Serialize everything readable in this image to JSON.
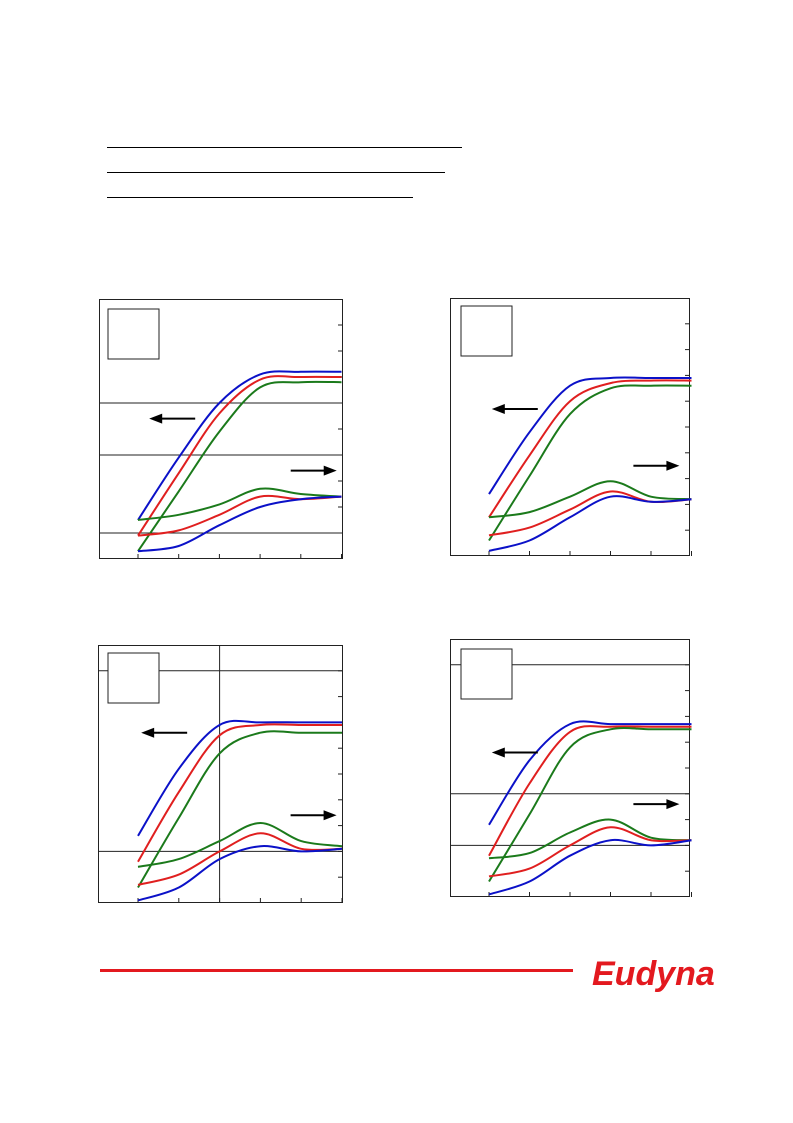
{
  "colors": {
    "blue": "#0b11c8",
    "red": "#e01f1f",
    "green": "#1b7a1b",
    "brand": "#e3191f"
  },
  "brand": {
    "logo": "Eudyna"
  },
  "charts": [
    {
      "id": "top-left",
      "y_ticks": 10,
      "x_ticks": 6,
      "h_lines": [
        1,
        4,
        6
      ],
      "v_lines": [],
      "arrows": [
        {
          "dir": "left",
          "x": 0.3,
          "y": 0.46
        },
        {
          "dir": "right",
          "x": 0.88,
          "y": 0.66
        }
      ],
      "series": [
        {
          "name": "",
          "color": "blue",
          "points": [
            [
              1,
              1.5
            ],
            [
              2,
              3.9
            ],
            [
              3,
              6.0
            ],
            [
              4,
              7.1
            ],
            [
              5,
              7.2
            ],
            [
              6,
              7.2
            ]
          ]
        },
        {
          "name": "",
          "color": "red",
          "points": [
            [
              1,
              0.9
            ],
            [
              2,
              3.3
            ],
            [
              3,
              5.6
            ],
            [
              4,
              6.9
            ],
            [
              5,
              7.0
            ],
            [
              6,
              7.0
            ]
          ]
        },
        {
          "name": "",
          "color": "green",
          "points": [
            [
              1,
              0.3
            ],
            [
              2,
              2.6
            ],
            [
              3,
              4.9
            ],
            [
              4,
              6.6
            ],
            [
              5,
              6.8
            ],
            [
              6,
              6.8
            ]
          ]
        },
        {
          "name": "",
          "color": "green",
          "points": [
            [
              1,
              1.5
            ],
            [
              2,
              1.7
            ],
            [
              3,
              2.1
            ],
            [
              4,
              2.7
            ],
            [
              5,
              2.5
            ],
            [
              6,
              2.4
            ]
          ]
        },
        {
          "name": "",
          "color": "red",
          "points": [
            [
              1,
              0.9
            ],
            [
              2,
              1.1
            ],
            [
              3,
              1.7
            ],
            [
              4,
              2.4
            ],
            [
              5,
              2.3
            ],
            [
              6,
              2.4
            ]
          ]
        },
        {
          "name": "",
          "color": "blue",
          "points": [
            [
              1,
              0.3
            ],
            [
              2,
              0.5
            ],
            [
              3,
              1.3
            ],
            [
              4,
              2.0
            ],
            [
              5,
              2.3
            ],
            [
              6,
              2.4
            ]
          ]
        }
      ]
    },
    {
      "id": "top-right",
      "y_ticks": 10,
      "x_ticks": 6,
      "h_lines": [],
      "v_lines": [],
      "arrows": [
        {
          "dir": "left",
          "x": 0.27,
          "y": 0.43
        },
        {
          "dir": "right",
          "x": 0.86,
          "y": 0.65
        }
      ],
      "series": [
        {
          "name": "",
          "color": "blue",
          "points": [
            [
              1,
              2.4
            ],
            [
              2,
              4.8
            ],
            [
              3,
              6.6
            ],
            [
              4,
              6.9
            ],
            [
              5,
              6.9
            ],
            [
              6,
              6.9
            ]
          ]
        },
        {
          "name": "",
          "color": "red",
          "points": [
            [
              1,
              1.5
            ],
            [
              2,
              3.9
            ],
            [
              3,
              6.0
            ],
            [
              4,
              6.7
            ],
            [
              5,
              6.8
            ],
            [
              6,
              6.8
            ]
          ]
        },
        {
          "name": "",
          "color": "green",
          "points": [
            [
              1,
              0.6
            ],
            [
              2,
              3.1
            ],
            [
              3,
              5.5
            ],
            [
              4,
              6.5
            ],
            [
              5,
              6.6
            ],
            [
              6,
              6.6
            ]
          ]
        },
        {
          "name": "",
          "color": "green",
          "points": [
            [
              1,
              1.5
            ],
            [
              2,
              1.7
            ],
            [
              3,
              2.3
            ],
            [
              4,
              2.9
            ],
            [
              5,
              2.3
            ],
            [
              6,
              2.2
            ]
          ]
        },
        {
          "name": "",
          "color": "red",
          "points": [
            [
              1,
              0.8
            ],
            [
              2,
              1.1
            ],
            [
              3,
              1.8
            ],
            [
              4,
              2.5
            ],
            [
              5,
              2.1
            ],
            [
              6,
              2.2
            ]
          ]
        },
        {
          "name": "",
          "color": "blue",
          "points": [
            [
              1,
              0.2
            ],
            [
              2,
              0.6
            ],
            [
              3,
              1.5
            ],
            [
              4,
              2.3
            ],
            [
              5,
              2.1
            ],
            [
              6,
              2.2
            ]
          ]
        }
      ]
    },
    {
      "id": "bottom-left",
      "y_ticks": 10,
      "x_ticks": 6,
      "h_lines": [
        2,
        9
      ],
      "v_lines": [
        3
      ],
      "arrows": [
        {
          "dir": "left",
          "x": 0.27,
          "y": 0.34
        },
        {
          "dir": "right",
          "x": 0.88,
          "y": 0.66
        }
      ],
      "series": [
        {
          "name": "",
          "color": "blue",
          "points": [
            [
              1,
              2.6
            ],
            [
              2,
              5.2
            ],
            [
              3,
              6.9
            ],
            [
              4,
              7.0
            ],
            [
              5,
              7.0
            ],
            [
              6,
              7.0
            ]
          ]
        },
        {
          "name": "",
          "color": "red",
          "points": [
            [
              1,
              1.6
            ],
            [
              2,
              4.3
            ],
            [
              3,
              6.5
            ],
            [
              4,
              6.9
            ],
            [
              5,
              6.9
            ],
            [
              6,
              6.9
            ]
          ]
        },
        {
          "name": "",
          "color": "green",
          "points": [
            [
              1,
              0.6
            ],
            [
              2,
              3.3
            ],
            [
              3,
              5.8
            ],
            [
              4,
              6.6
            ],
            [
              5,
              6.6
            ],
            [
              6,
              6.6
            ]
          ]
        },
        {
          "name": "",
          "color": "green",
          "points": [
            [
              1,
              1.4
            ],
            [
              2,
              1.7
            ],
            [
              3,
              2.4
            ],
            [
              4,
              3.1
            ],
            [
              5,
              2.4
            ],
            [
              6,
              2.2
            ]
          ]
        },
        {
          "name": "",
          "color": "red",
          "points": [
            [
              1,
              0.7
            ],
            [
              2,
              1.1
            ],
            [
              3,
              2.0
            ],
            [
              4,
              2.7
            ],
            [
              5,
              2.1
            ],
            [
              6,
              2.1
            ]
          ]
        },
        {
          "name": "",
          "color": "blue",
          "points": [
            [
              1,
              0.1
            ],
            [
              2,
              0.6
            ],
            [
              3,
              1.7
            ],
            [
              4,
              2.2
            ],
            [
              5,
              2.0
            ],
            [
              6,
              2.1
            ]
          ]
        }
      ]
    },
    {
      "id": "bottom-right",
      "y_ticks": 10,
      "x_ticks": 6,
      "h_lines": [
        2,
        4,
        9
      ],
      "v_lines": [],
      "arrows": [
        {
          "dir": "left",
          "x": 0.27,
          "y": 0.44
        },
        {
          "dir": "right",
          "x": 0.86,
          "y": 0.64
        }
      ],
      "series": [
        {
          "name": "",
          "color": "blue",
          "points": [
            [
              1,
              2.8
            ],
            [
              2,
              5.3
            ],
            [
              3,
              6.7
            ],
            [
              4,
              6.7
            ],
            [
              5,
              6.7
            ],
            [
              6,
              6.7
            ]
          ]
        },
        {
          "name": "",
          "color": "red",
          "points": [
            [
              1,
              1.6
            ],
            [
              2,
              4.4
            ],
            [
              3,
              6.4
            ],
            [
              4,
              6.6
            ],
            [
              5,
              6.6
            ],
            [
              6,
              6.6
            ]
          ]
        },
        {
          "name": "",
          "color": "green",
          "points": [
            [
              1,
              0.6
            ],
            [
              2,
              3.2
            ],
            [
              3,
              5.8
            ],
            [
              4,
              6.5
            ],
            [
              5,
              6.5
            ],
            [
              6,
              6.5
            ]
          ]
        },
        {
          "name": "",
          "color": "green",
          "points": [
            [
              1,
              1.5
            ],
            [
              2,
              1.7
            ],
            [
              3,
              2.5
            ],
            [
              4,
              3.0
            ],
            [
              5,
              2.3
            ],
            [
              6,
              2.2
            ]
          ]
        },
        {
          "name": "",
          "color": "red",
          "points": [
            [
              1,
              0.8
            ],
            [
              2,
              1.1
            ],
            [
              3,
              2.0
            ],
            [
              4,
              2.7
            ],
            [
              5,
              2.2
            ],
            [
              6,
              2.2
            ]
          ]
        },
        {
          "name": "",
          "color": "blue",
          "points": [
            [
              1,
              0.1
            ],
            [
              2,
              0.6
            ],
            [
              3,
              1.6
            ],
            [
              4,
              2.2
            ],
            [
              5,
              2.0
            ],
            [
              6,
              2.2
            ]
          ]
        }
      ]
    }
  ]
}
